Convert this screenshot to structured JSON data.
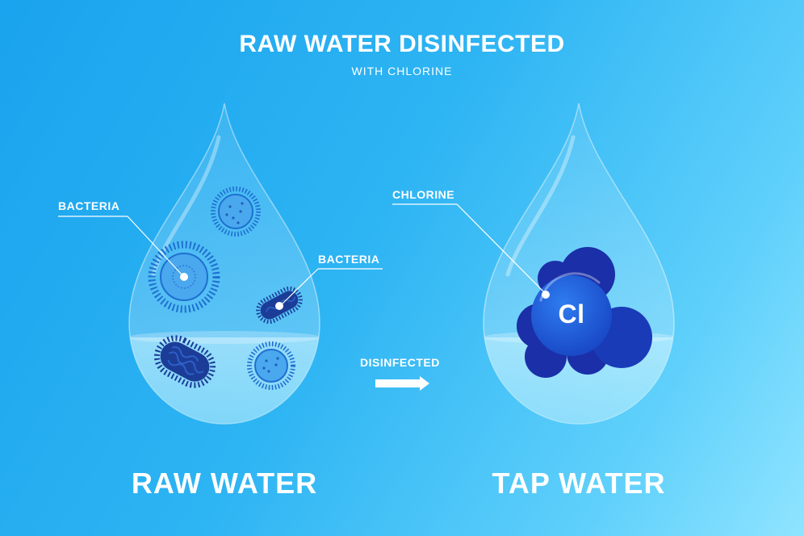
{
  "header": {
    "title": "RAW WATER DISINFECTED",
    "subtitle": "WITH CHLORINE"
  },
  "left_drop": {
    "callout_top": "BACTERIA",
    "callout_right": "BACTERIA",
    "caption": "RAW WATER"
  },
  "process": {
    "arrow_label": "DISINFECTED"
  },
  "right_drop": {
    "callout": "CHLORINE",
    "element_symbol": "Cl",
    "caption": "TAP WATER"
  },
  "colors": {
    "background_start": "#1aa3ee",
    "background_end": "#8fe4ff",
    "bacteria_light": "#3a9de6",
    "bacteria_dark": "#1c3f9c",
    "chlorine_blue": "#1f5fd6",
    "chlorine_dark": "#1a2fa8"
  }
}
